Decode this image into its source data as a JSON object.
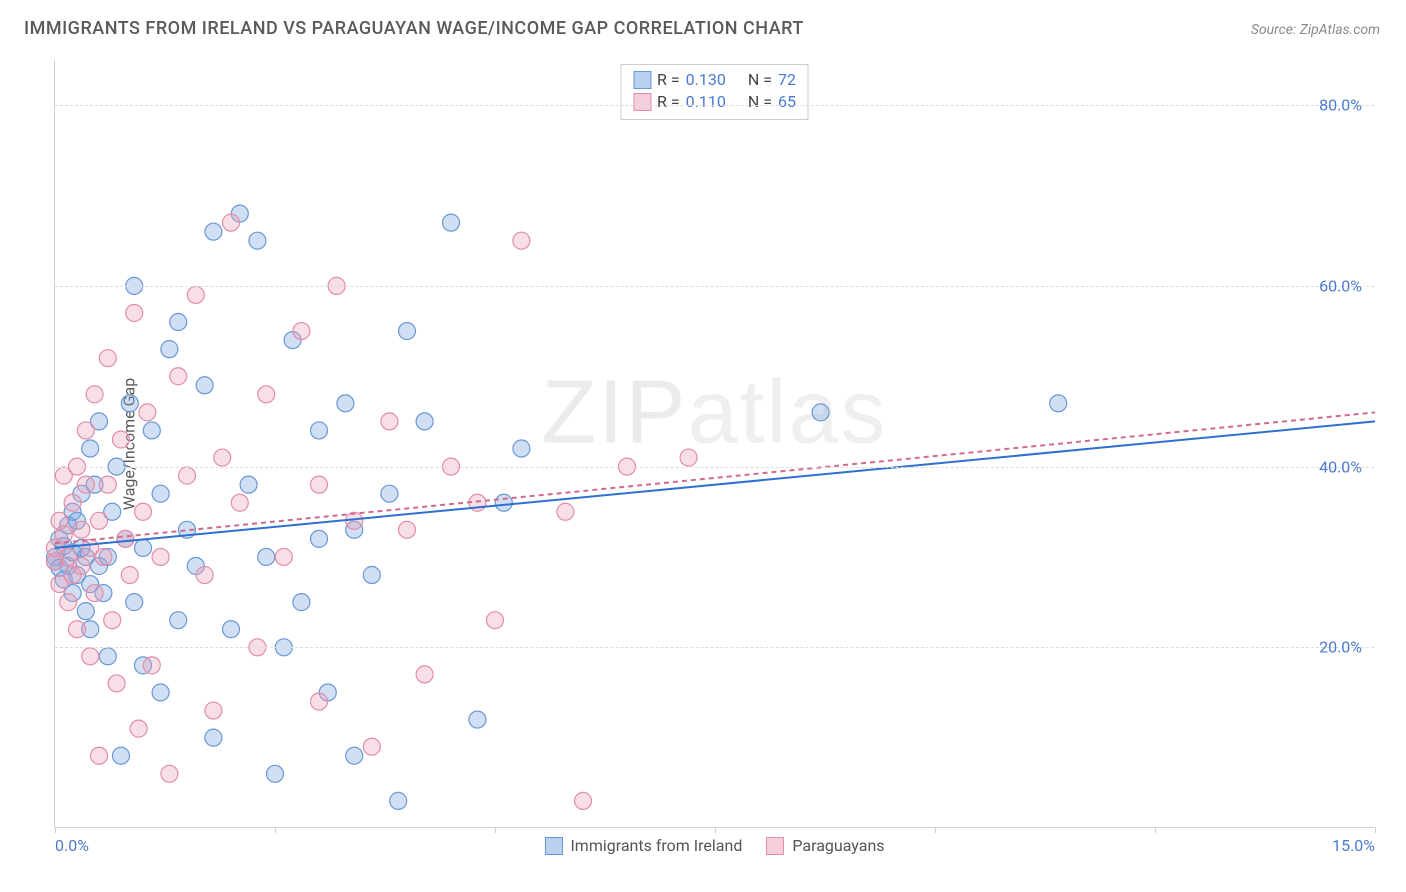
{
  "title": "IMMIGRANTS FROM IRELAND VS PARAGUAYAN WAGE/INCOME GAP CORRELATION CHART",
  "source": "Source: ZipAtlas.com",
  "ylabel": "Wage/Income Gap",
  "watermark_bold": "ZIP",
  "watermark_thin": "atlas",
  "chart": {
    "type": "scatter",
    "xlim": [
      0,
      15
    ],
    "ylim": [
      0,
      85
    ],
    "yticks": [
      20,
      40,
      60,
      80
    ],
    "ytick_labels": [
      "20.0%",
      "40.0%",
      "60.0%",
      "80.0%"
    ],
    "xticks": [
      0,
      2.5,
      5.0,
      7.5,
      10.0,
      12.5,
      15.0
    ],
    "xtick_labels_shown": {
      "0": "0.0%",
      "15": "15.0%"
    },
    "background_color": "#ffffff",
    "grid_color": "#dddddd",
    "axis_color": "#cfcfcf",
    "tick_label_color": "#4a7ad1",
    "marker_radius": 8.5,
    "marker_stroke_width": 1.2,
    "series": [
      {
        "name": "Immigrants from Ireland",
        "short": "ireland",
        "fill": "rgba(120,163,220,0.35)",
        "stroke": "#6a98d6",
        "swatch_fill": "#b9d0ee",
        "swatch_stroke": "#6a98d6",
        "R": "0.130",
        "N": "72",
        "trend": {
          "x1": 0,
          "y1": 31,
          "x2": 15,
          "y2": 45,
          "color": "#2f6fd0",
          "width": 2
        },
        "points": [
          [
            0.0,
            30
          ],
          [
            0.0,
            29.5
          ],
          [
            0.05,
            28.8
          ],
          [
            0.05,
            32
          ],
          [
            0.1,
            31.2
          ],
          [
            0.1,
            27.5
          ],
          [
            0.15,
            33.5
          ],
          [
            0.15,
            29
          ],
          [
            0.2,
            30.5
          ],
          [
            0.2,
            26
          ],
          [
            0.2,
            35
          ],
          [
            0.25,
            34
          ],
          [
            0.25,
            28
          ],
          [
            0.3,
            31
          ],
          [
            0.3,
            37
          ],
          [
            0.35,
            24
          ],
          [
            0.35,
            30
          ],
          [
            0.4,
            27
          ],
          [
            0.4,
            22
          ],
          [
            0.4,
            42
          ],
          [
            0.45,
            38
          ],
          [
            0.5,
            29
          ],
          [
            0.5,
            45
          ],
          [
            0.55,
            26
          ],
          [
            0.6,
            30
          ],
          [
            0.6,
            19
          ],
          [
            0.65,
            35
          ],
          [
            0.7,
            40
          ],
          [
            0.75,
            8
          ],
          [
            0.8,
            32
          ],
          [
            0.85,
            47
          ],
          [
            0.9,
            25
          ],
          [
            0.9,
            60
          ],
          [
            1.0,
            18
          ],
          [
            1.0,
            31
          ],
          [
            1.1,
            44
          ],
          [
            1.2,
            37
          ],
          [
            1.2,
            15
          ],
          [
            1.3,
            53
          ],
          [
            1.4,
            56
          ],
          [
            1.4,
            23
          ],
          [
            1.5,
            33
          ],
          [
            1.6,
            29
          ],
          [
            1.7,
            49
          ],
          [
            1.8,
            10
          ],
          [
            1.8,
            66
          ],
          [
            2.0,
            22
          ],
          [
            2.1,
            68
          ],
          [
            2.2,
            38
          ],
          [
            2.3,
            65
          ],
          [
            2.4,
            30
          ],
          [
            2.5,
            6
          ],
          [
            2.6,
            20
          ],
          [
            2.7,
            54
          ],
          [
            2.8,
            25
          ],
          [
            3.0,
            32
          ],
          [
            3.0,
            44
          ],
          [
            3.1,
            15
          ],
          [
            3.3,
            47
          ],
          [
            3.4,
            33
          ],
          [
            3.4,
            8
          ],
          [
            3.6,
            28
          ],
          [
            3.8,
            37
          ],
          [
            3.9,
            3
          ],
          [
            4.0,
            55
          ],
          [
            4.2,
            45
          ],
          [
            4.5,
            67
          ],
          [
            4.8,
            12
          ],
          [
            5.1,
            36
          ],
          [
            5.3,
            42
          ],
          [
            8.7,
            46
          ],
          [
            11.4,
            47
          ]
        ]
      },
      {
        "name": "Paraguayans",
        "short": "paraguay",
        "fill": "rgba(234,160,185,0.35)",
        "stroke": "#e28daa",
        "swatch_fill": "#f4cfdb",
        "swatch_stroke": "#e28daa",
        "R": "0.110",
        "N": "65",
        "trend": {
          "x1": 0,
          "y1": 31.5,
          "x2": 15,
          "y2": 46,
          "color": "#d06a8f",
          "width": 2,
          "dash": "5,4"
        },
        "points": [
          [
            0.0,
            29.5
          ],
          [
            0.0,
            31
          ],
          [
            0.05,
            34
          ],
          [
            0.05,
            27
          ],
          [
            0.1,
            32.5
          ],
          [
            0.1,
            39
          ],
          [
            0.15,
            30
          ],
          [
            0.15,
            25
          ],
          [
            0.2,
            28
          ],
          [
            0.2,
            36
          ],
          [
            0.25,
            40
          ],
          [
            0.25,
            22
          ],
          [
            0.3,
            33
          ],
          [
            0.3,
            29
          ],
          [
            0.35,
            38
          ],
          [
            0.35,
            44
          ],
          [
            0.4,
            19
          ],
          [
            0.4,
            31
          ],
          [
            0.45,
            26
          ],
          [
            0.45,
            48
          ],
          [
            0.5,
            34
          ],
          [
            0.5,
            8
          ],
          [
            0.55,
            30
          ],
          [
            0.6,
            52
          ],
          [
            0.6,
            38
          ],
          [
            0.65,
            23
          ],
          [
            0.7,
            16
          ],
          [
            0.75,
            43
          ],
          [
            0.8,
            32
          ],
          [
            0.85,
            28
          ],
          [
            0.9,
            57
          ],
          [
            0.95,
            11
          ],
          [
            1.0,
            35
          ],
          [
            1.05,
            46
          ],
          [
            1.1,
            18
          ],
          [
            1.2,
            30
          ],
          [
            1.3,
            6
          ],
          [
            1.4,
            50
          ],
          [
            1.5,
            39
          ],
          [
            1.6,
            59
          ],
          [
            1.7,
            28
          ],
          [
            1.8,
            13
          ],
          [
            1.9,
            41
          ],
          [
            2.0,
            67
          ],
          [
            2.1,
            36
          ],
          [
            2.3,
            20
          ],
          [
            2.4,
            48
          ],
          [
            2.6,
            30
          ],
          [
            2.8,
            55
          ],
          [
            3.0,
            38
          ],
          [
            3.0,
            14
          ],
          [
            3.2,
            60
          ],
          [
            3.4,
            34
          ],
          [
            3.6,
            9
          ],
          [
            3.8,
            45
          ],
          [
            4.0,
            33
          ],
          [
            4.2,
            17
          ],
          [
            4.5,
            40
          ],
          [
            4.8,
            36
          ],
          [
            5.0,
            23
          ],
          [
            5.3,
            65
          ],
          [
            5.8,
            35
          ],
          [
            6.0,
            3
          ],
          [
            6.5,
            40
          ],
          [
            7.2,
            41
          ]
        ]
      }
    ],
    "bottom_legend": [
      {
        "label": "Immigrants from Ireland",
        "swatch_fill": "#b9d0ee",
        "swatch_stroke": "#6a98d6"
      },
      {
        "label": "Paraguayans",
        "swatch_fill": "#f4cfdb",
        "swatch_stroke": "#e28daa"
      }
    ]
  }
}
